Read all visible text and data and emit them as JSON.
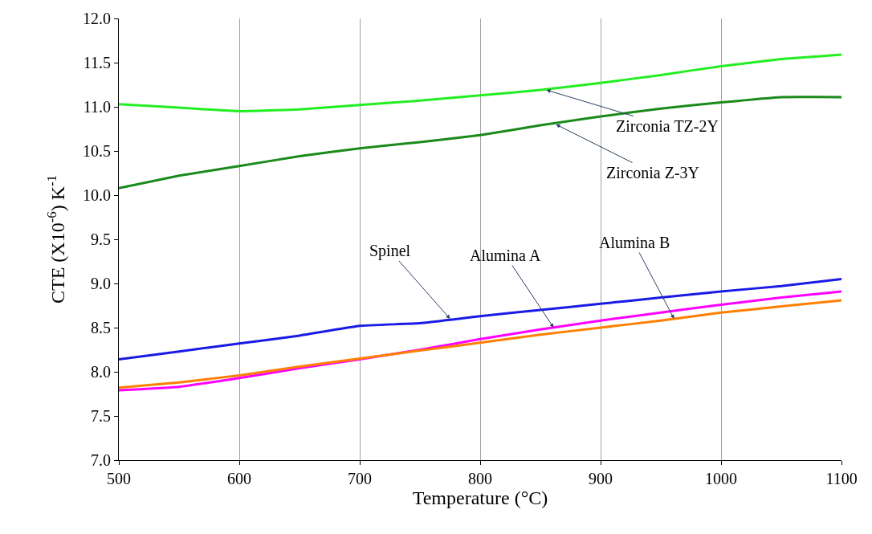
{
  "chart_data": {
    "type": "line",
    "xlabel": "Temperature (°C)",
    "ylabel": "CTE (X10$^{-6}$) K$^{-1}$",
    "x": [
      500,
      550,
      600,
      650,
      700,
      750,
      800,
      850,
      900,
      950,
      1000,
      1050,
      1100
    ],
    "series": [
      {
        "color": "#22ee22",
        "values": [
          11.03,
          10.99,
          10.95,
          10.97,
          11.02,
          11.07,
          11.13,
          11.19,
          11.27,
          11.36,
          11.46,
          11.54,
          11.59
        ]
      },
      {
        "color": "#1a8a1a",
        "values": [
          10.08,
          10.22,
          10.33,
          10.44,
          10.53,
          10.6,
          10.68,
          10.79,
          10.89,
          10.98,
          11.05,
          11.11,
          11.11
        ]
      },
      {
        "color": "#1a1ae6",
        "values": [
          8.14,
          8.23,
          8.32,
          8.41,
          8.52,
          8.55,
          8.63,
          8.7,
          8.77,
          8.84,
          8.91,
          8.97,
          9.05
        ]
      },
      {
        "color": "#ff00ff",
        "values": [
          7.79,
          7.83,
          7.93,
          8.04,
          8.14,
          8.25,
          8.37,
          8.48,
          8.58,
          8.67,
          8.76,
          8.84,
          8.91
        ]
      },
      {
        "color": "#ff7f00",
        "values": [
          7.82,
          7.88,
          7.96,
          8.06,
          8.15,
          8.24,
          8.33,
          8.42,
          8.5,
          8.58,
          8.67,
          8.74,
          8.81
        ]
      }
    ],
    "annotations": [
      {
        "text": "Zirconia TZ-2Y",
        "x": 855,
        "y": 11.19
      },
      {
        "text": "Zirconia Z-3Y",
        "x": 863,
        "y": 10.8
      },
      {
        "text": "Spinel",
        "x": 775,
        "y": 8.6
      },
      {
        "text": "Alumina A",
        "x": 861,
        "y": 8.5
      },
      {
        "text": "Alumina B",
        "x": 961,
        "y": 8.6
      }
    ],
    "xlim": [
      500,
      1100
    ],
    "xticks": [
      500,
      600,
      700,
      800,
      900,
      1000,
      1100
    ],
    "ylim": [
      7.0,
      12.0
    ],
    "yticks": [
      {
        "value": 7.0,
        "label": "7.0"
      },
      {
        "value": 7.5,
        "label": "7.5"
      },
      {
        "value": 8.0,
        "label": "8.0"
      },
      {
        "value": 8.5,
        "label": "8.5"
      },
      {
        "value": 9.0,
        "label": "9.0"
      },
      {
        "value": 9.5,
        "label": "9.5"
      },
      {
        "value": 10.0,
        "label": "10.0"
      },
      {
        "value": 10.5,
        "label": "10.5"
      },
      {
        "value": 11.0,
        "label": "11.0"
      },
      {
        "value": 11.5,
        "label": "11.5"
      },
      {
        "value": 12.0,
        "label": "12.0"
      }
    ],
    "grid": "x"
  }
}
